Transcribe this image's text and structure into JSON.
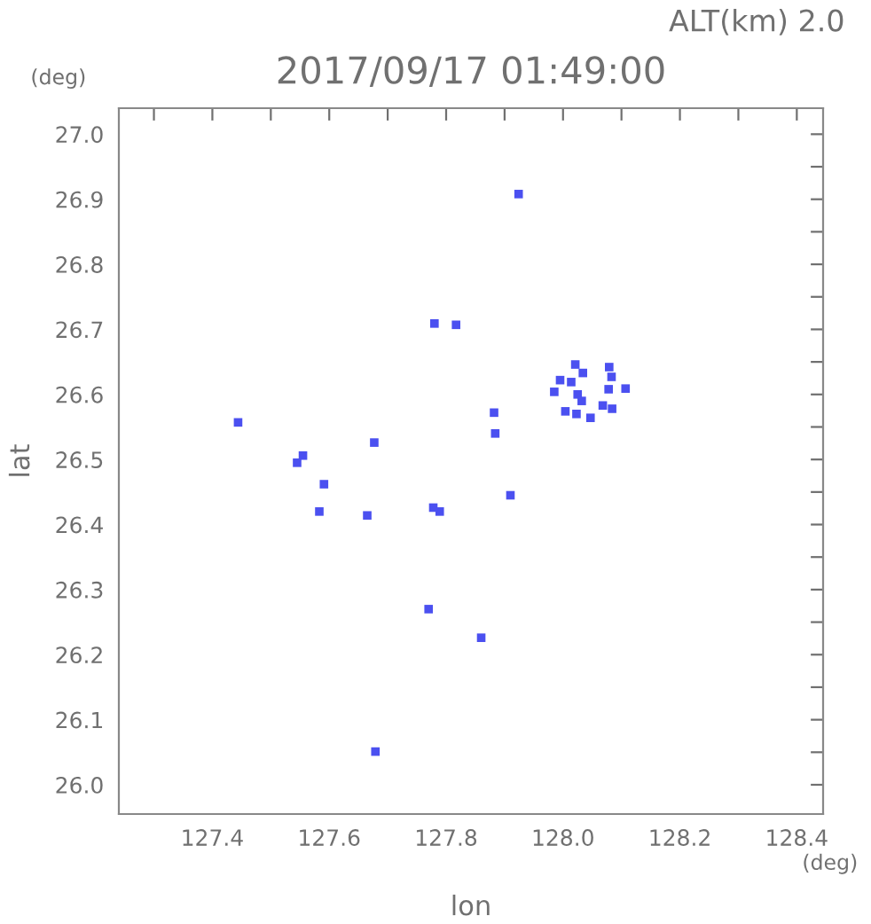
{
  "chart_data": {
    "type": "scatter",
    "title": "2017/09/17 01:49:00",
    "xlabel": "lon",
    "ylabel": "lat",
    "annotations": [
      "ALT(km) 2.0",
      "(deg)",
      "(deg)"
    ],
    "xlim": [
      127.24,
      128.445
    ],
    "ylim": [
      25.955,
      27.04
    ],
    "xticks": [
      {
        "value": 127.3,
        "label": null
      },
      127.4,
      {
        "value": 127.5,
        "label": null
      },
      127.6,
      {
        "value": 127.7,
        "label": null
      },
      127.8,
      {
        "value": 127.9,
        "label": null
      },
      {
        "value": 128.0,
        "label": "128.0"
      },
      {
        "value": 128.1,
        "label": null
      },
      128.2,
      {
        "value": 128.3,
        "label": null
      },
      128.4
    ],
    "yticks": [
      {
        "value": 26.0,
        "label": "26.0"
      },
      {
        "value": 26.05,
        "label": null
      },
      26.1,
      {
        "value": 26.15,
        "label": null
      },
      26.2,
      {
        "value": 26.25,
        "label": null
      },
      26.3,
      {
        "value": 26.35,
        "label": null
      },
      26.4,
      {
        "value": 26.45,
        "label": null
      },
      26.5,
      {
        "value": 26.55,
        "label": null
      },
      26.6,
      {
        "value": 26.65,
        "label": null
      },
      26.7,
      {
        "value": 26.75,
        "label": null
      },
      26.8,
      {
        "value": 26.85,
        "label": null
      },
      26.9,
      {
        "value": 26.95,
        "label": null
      },
      {
        "value": 27.0,
        "label": "27.0"
      }
    ],
    "grid": false,
    "marker": "square",
    "series": [
      {
        "color": "#4b50f0",
        "x": [
          127.924,
          127.78,
          127.817,
          128.021,
          128.083,
          128.107,
          128.025,
          128.032,
          128.014,
          128.004,
          128.023,
          128.084,
          127.985,
          128.078,
          127.995,
          128.079,
          128.034,
          128.047,
          128.068,
          127.882,
          127.884,
          127.91,
          127.789,
          127.778,
          127.444,
          127.555,
          127.545,
          127.591,
          127.583,
          127.665,
          127.677,
          127.77,
          127.86,
          127.679
        ],
        "values": [
          26.908,
          26.709,
          26.707,
          26.646,
          26.627,
          26.609,
          26.6,
          26.59,
          26.619,
          26.574,
          26.57,
          26.578,
          26.604,
          26.608,
          26.622,
          26.642,
          26.633,
          26.564,
          26.583,
          26.572,
          26.54,
          26.445,
          26.42,
          26.426,
          26.557,
          26.506,
          26.495,
          26.462,
          26.42,
          26.414,
          26.526,
          26.27,
          26.226,
          26.051
        ]
      }
    ]
  }
}
